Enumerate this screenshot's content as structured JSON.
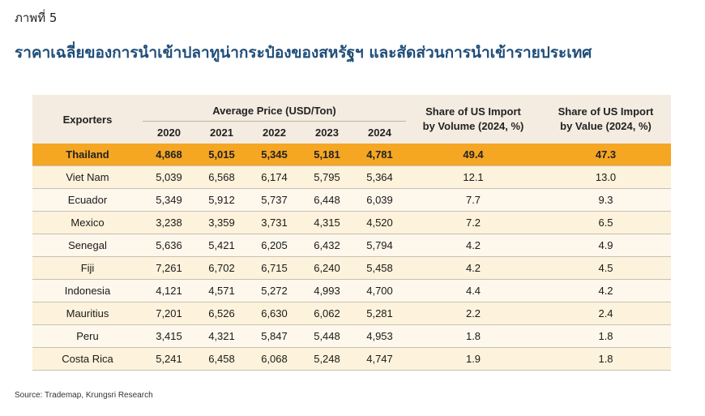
{
  "figure_label": "ภาพที่ 5",
  "title": "ราคาเฉลี่ยของการนำเข้าปลาทูน่ากระป๋องของสหรัฐฯ และสัดส่วนการนำเข้ารายประเทศ",
  "table": {
    "exporters_header": "Exporters",
    "avg_price_header": "Average Price (USD/Ton)",
    "years": [
      "2020",
      "2021",
      "2022",
      "2023",
      "2024"
    ],
    "share_volume_header_line1": "Share of US Import",
    "share_volume_header_line2": "by Volume (2024, %)",
    "share_value_header_line1": "Share of US Import",
    "share_value_header_line2": "by Value (2024, %)",
    "rows": [
      {
        "name": "Thailand",
        "prices": [
          "4,868",
          "5,015",
          "5,345",
          "5,181",
          "4,781"
        ],
        "vol": "49.4",
        "val": "47.3"
      },
      {
        "name": "Viet Nam",
        "prices": [
          "5,039",
          "6,568",
          "6,174",
          "5,795",
          "5,364"
        ],
        "vol": "12.1",
        "val": "13.0"
      },
      {
        "name": "Ecuador",
        "prices": [
          "5,349",
          "5,912",
          "5,737",
          "6,448",
          "6,039"
        ],
        "vol": "7.7",
        "val": "9.3"
      },
      {
        "name": "Mexico",
        "prices": [
          "3,238",
          "3,359",
          "3,731",
          "4,315",
          "4,520"
        ],
        "vol": "7.2",
        "val": "6.5"
      },
      {
        "name": "Senegal",
        "prices": [
          "5,636",
          "5,421",
          "6,205",
          "6,432",
          "5,794"
        ],
        "vol": "4.2",
        "val": "4.9"
      },
      {
        "name": "Fiji",
        "prices": [
          "7,261",
          "6,702",
          "6,715",
          "6,240",
          "5,458"
        ],
        "vol": "4.2",
        "val": "4.5"
      },
      {
        "name": "Indonesia",
        "prices": [
          "4,121",
          "4,571",
          "5,272",
          "4,993",
          "4,700"
        ],
        "vol": "4.4",
        "val": "4.2"
      },
      {
        "name": "Mauritius",
        "prices": [
          "7,201",
          "6,526",
          "6,630",
          "6,062",
          "5,281"
        ],
        "vol": "2.2",
        "val": "2.4"
      },
      {
        "name": "Peru",
        "prices": [
          "3,415",
          "4,321",
          "5,847",
          "5,448",
          "4,953"
        ],
        "vol": "1.8",
        "val": "1.8"
      },
      {
        "name": "Costa Rica",
        "prices": [
          "5,241",
          "6,458",
          "6,068",
          "5,248",
          "4,747"
        ],
        "vol": "1.9",
        "val": "1.8"
      }
    ]
  },
  "source": "Source: Trademap, Krungsri Research",
  "colors": {
    "title": "#1f4e79",
    "header_bg": "#f4ece1",
    "highlight_row": "#f5a623",
    "row_bg": "#fdf2db"
  }
}
